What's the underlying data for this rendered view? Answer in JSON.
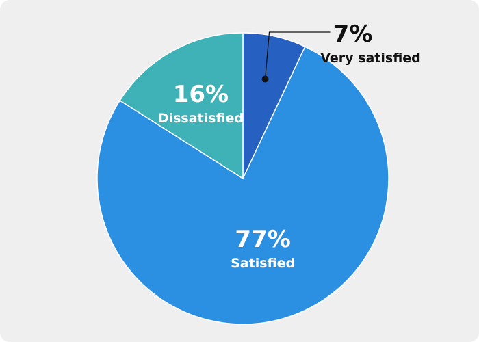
{
  "chart_data": {
    "type": "pie",
    "title": "",
    "start_angle_deg": 0,
    "direction": "clockwise",
    "slices": [
      {
        "label": "Very satisfied",
        "value": 7,
        "value_label": "7%",
        "color": "#2660c0",
        "label_color": "#111111",
        "label_mode": "callout"
      },
      {
        "label": "Satisfied",
        "value": 77,
        "value_label": "77%",
        "color": "#2b8fe2",
        "label_color": "#ffffff",
        "label_mode": "inside"
      },
      {
        "label": "Dissatisfied",
        "value": 16,
        "value_label": "16%",
        "color": "#3fb2b8",
        "label_color": "#ffffff",
        "label_mode": "inside"
      }
    ]
  }
}
